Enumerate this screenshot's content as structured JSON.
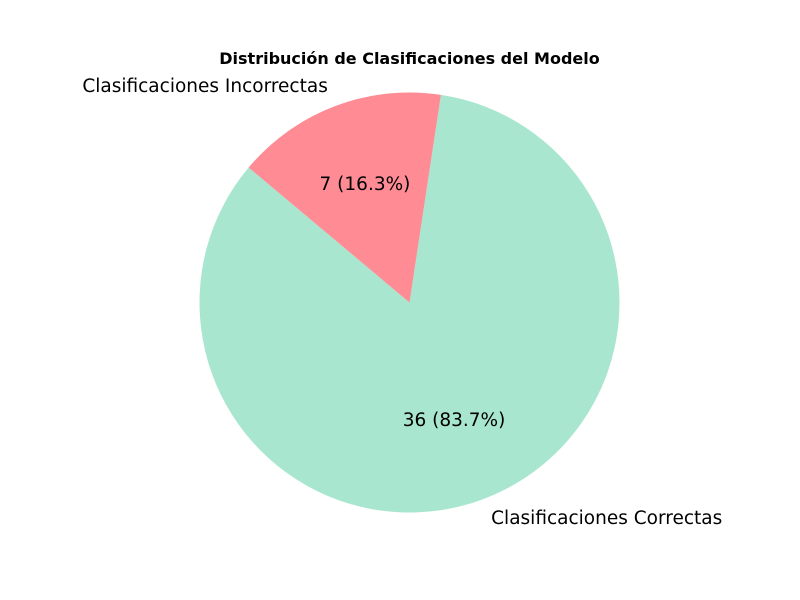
{
  "chart_data": {
    "type": "pie",
    "title": "Distribución de Clasificaciones del Modelo",
    "slices": [
      {
        "label": "Clasificaciones Correctas",
        "value": 36,
        "percent_label": "36 (83.7%)",
        "color": "#a8e6cf"
      },
      {
        "label": "Clasificaciones Incorrectas",
        "value": 7,
        "percent_label": "7 (16.3%)",
        "color": "#ff8b94"
      }
    ],
    "start_angle_deg": 140,
    "direction": "counterclockwise",
    "legend": "none"
  }
}
